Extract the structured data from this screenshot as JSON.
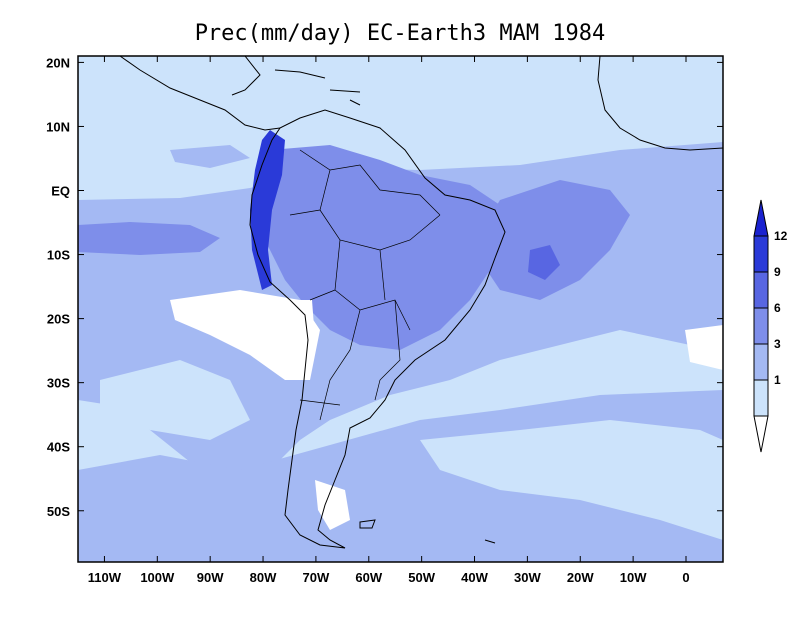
{
  "title": "Prec(mm/day) EC-Earth3 MAM 1984",
  "map": {
    "lon_range": [
      -115,
      7
    ],
    "lat_range": [
      -58,
      21
    ],
    "lon_ticks": [
      {
        "value": -110,
        "label": "110W"
      },
      {
        "value": -100,
        "label": "100W"
      },
      {
        "value": -90,
        "label": "90W"
      },
      {
        "value": -80,
        "label": "80W"
      },
      {
        "value": -70,
        "label": "70W"
      },
      {
        "value": -60,
        "label": "60W"
      },
      {
        "value": -50,
        "label": "50W"
      },
      {
        "value": -40,
        "label": "40W"
      },
      {
        "value": -30,
        "label": "30W"
      },
      {
        "value": -20,
        "label": "20W"
      },
      {
        "value": -10,
        "label": "10W"
      },
      {
        "value": 0,
        "label": "0"
      }
    ],
    "lat_ticks": [
      {
        "value": 20,
        "label": "20N"
      },
      {
        "value": 10,
        "label": "10N"
      },
      {
        "value": 0,
        "label": "EQ"
      },
      {
        "value": -10,
        "label": "10S"
      },
      {
        "value": -20,
        "label": "20S"
      },
      {
        "value": -30,
        "label": "30S"
      },
      {
        "value": -40,
        "label": "40S"
      },
      {
        "value": -50,
        "label": "50S"
      }
    ]
  },
  "colorbar": {
    "levels": [
      "1",
      "3",
      "6",
      "9",
      "12"
    ],
    "colors": [
      "#ffffff",
      "#cce3fb",
      "#a4b9f3",
      "#7e8eea",
      "#5866e2",
      "#2a3ad8",
      "#1a22d0"
    ]
  }
}
